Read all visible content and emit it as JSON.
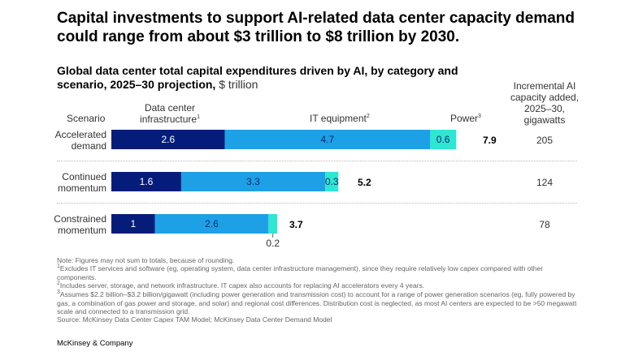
{
  "headline": "Capital investments to support AI-related data center capacity demand could range from about $3 trillion to $8 trillion by 2030.",
  "subtitle_bold": "Global data center total capital expenditures driven by AI, by category and scenario, 2025–30 projection,",
  "subtitle_unit": " $ trillion",
  "headers": {
    "scenario": "Scenario",
    "infra": "Data center infrastructure",
    "infra_sup": "1",
    "it": "IT equipment",
    "it_sup": "2",
    "power": "Power",
    "power_sup": "3",
    "gw": "Incremental AI capacity added, 2025–30, gigawatts"
  },
  "chart_data": {
    "type": "bar",
    "orientation": "horizontal",
    "stacked": true,
    "categories": [
      "Accelerated demand",
      "Continued momentum",
      "Constrained momentum"
    ],
    "series": [
      {
        "name": "Data center infrastructure",
        "values": [
          2.6,
          1.6,
          1.0
        ],
        "color": "#051c7a",
        "label_color": "#ffffff"
      },
      {
        "name": "IT equipment",
        "values": [
          4.7,
          3.3,
          2.6
        ],
        "color": "#1ea0e6",
        "label_color": "#0b2a6e"
      },
      {
        "name": "Power",
        "values": [
          0.6,
          0.3,
          0.2
        ],
        "color": "#2ee6d2",
        "label_color": "#0b2a6e"
      }
    ],
    "totals": [
      "7.9",
      "5.2",
      "3.7"
    ],
    "gigawatts": [
      "205",
      "124",
      "78"
    ]
  },
  "notes": {
    "n0": "Note: Figures may not sum to totals, because of rounding.",
    "n1_sup": "1",
    "n1": "Excludes IT services and software (eg, operating system, data center infrastructure management), since they require relatively low capex compared with other components.",
    "n2_sup": "2",
    "n2": "Includes server, storage, and network infrastructure. IT capex also accounts for replacing AI accelerators every 4 years.",
    "n3_sup": "3",
    "n3": "Assumes $2.2 billion–$3.2 billion/gigawatt (including power generation and transmission cost) to account for a range of power generation scenarios (eg, fully powered by gas, a combination of gas power and storage, and solar) and regional cost differences. Distribution cost is neglected, as most AI centers are expected to be >50 megawatt scale and connected to a transmission grid.",
    "source": "Source: McKinsey Data Center Capex TAM Model; McKinsey Data Center Demand Model"
  },
  "brand": "McKinsey & Company"
}
